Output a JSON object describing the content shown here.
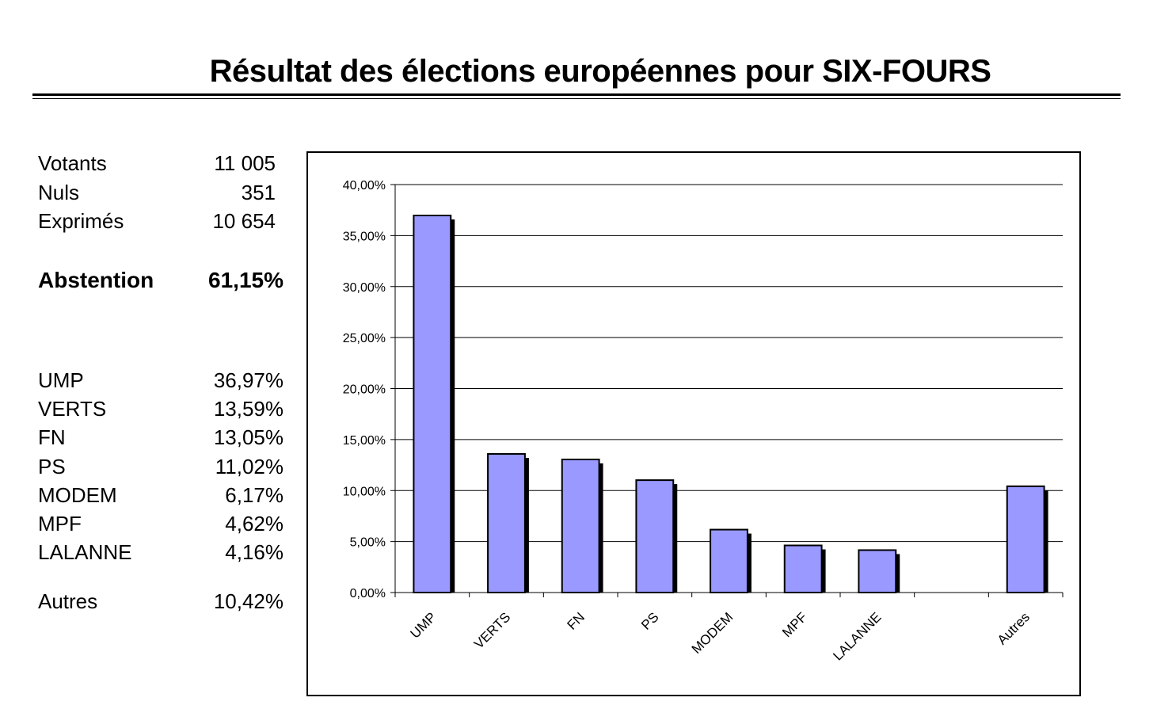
{
  "title": "Résultat des élections européennes pour SIX-FOURS",
  "stats": {
    "general": [
      {
        "label": "Votants",
        "value": "11 005"
      },
      {
        "label": "Nuls",
        "value": "351"
      },
      {
        "label": "Exprimés",
        "value": "10 654"
      }
    ],
    "abstention": {
      "label": "Abstention",
      "value": "61,15%"
    },
    "results": [
      {
        "label": "UMP",
        "value": "36,97%"
      },
      {
        "label": "VERTS",
        "value": "13,59%"
      },
      {
        "label": "FN",
        "value": "13,05%"
      },
      {
        "label": "PS",
        "value": "11,02%"
      },
      {
        "label": "MODEM",
        "value": "6,17%"
      },
      {
        "label": "MPF",
        "value": "4,62%"
      },
      {
        "label": "LALANNE",
        "value": "4,16%"
      }
    ],
    "autres": {
      "label": "Autres",
      "value": "10,42%"
    }
  },
  "chart_data": {
    "type": "bar",
    "categories": [
      "UMP",
      "VERTS",
      "FN",
      "PS",
      "MODEM",
      "MPF",
      "LALANNE",
      "",
      "Autres"
    ],
    "values": [
      36.97,
      13.59,
      13.05,
      11.02,
      6.17,
      4.62,
      4.16,
      null,
      10.42
    ],
    "ylim": [
      0,
      40
    ],
    "yticks": [
      0,
      5,
      10,
      15,
      20,
      25,
      30,
      35,
      40
    ],
    "ytick_labels": [
      "0,00%",
      "5,00%",
      "10,00%",
      "15,00%",
      "20,00%",
      "25,00%",
      "30,00%",
      "35,00%",
      "40,00%"
    ],
    "grid": true,
    "legend": "none",
    "bar_color": "#9999ff",
    "shadow_color": "#000000"
  }
}
